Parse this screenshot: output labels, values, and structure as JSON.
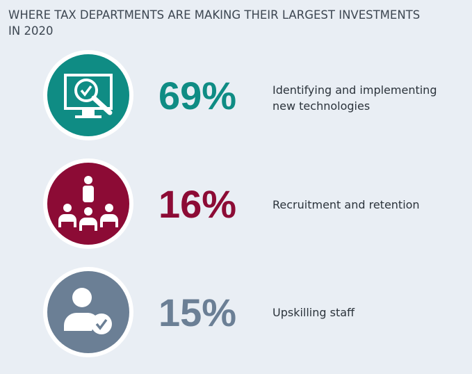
{
  "title": "WHERE TAX DEPARTMENTS ARE MAKING THEIR LARGEST INVESTMENTS IN 2020",
  "items": [
    {
      "value": "69%",
      "label": [
        "Identifying and implementing",
        "new technologies"
      ]
    },
    {
      "value": "16%",
      "label": [
        "Recruitment and retention"
      ]
    },
    {
      "value": "15%",
      "label": [
        "Upskilling staff"
      ]
    }
  ]
}
